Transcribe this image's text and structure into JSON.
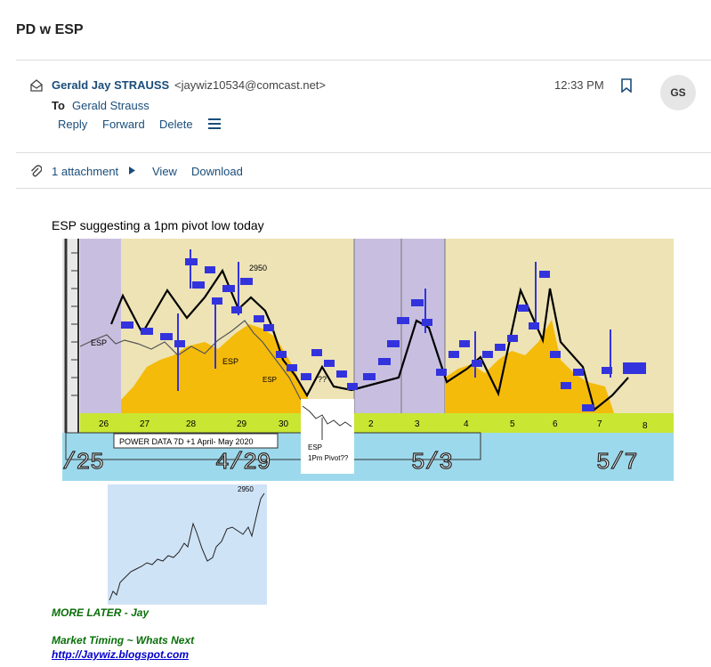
{
  "subject": "PD w ESP",
  "sender": {
    "name": "Gerald Jay STRAUSS",
    "email": "<jaywiz10534@comcast.net>",
    "time": "12:33 PM",
    "avatar_initials": "GS"
  },
  "recipient": {
    "to_label": "To",
    "name": "Gerald Strauss"
  },
  "actions": {
    "reply": "Reply",
    "forward": "Forward",
    "delete": "Delete"
  },
  "attachments": {
    "count_label": "1 attachment",
    "view": "View",
    "download": "Download"
  },
  "body": {
    "headline": "ESP suggesting a 1pm pivot low today",
    "signature": {
      "more": "MORE LATER - Jay",
      "blog_title": "Market Timing ~ Whats Next",
      "blog_link": "http://Jaywiz.blogspot.com"
    }
  },
  "chart_image": {
    "date_numbers": [
      "26",
      "27",
      "28",
      "29",
      "30",
      "",
      "2",
      "3",
      "4",
      "5",
      "6",
      "7",
      "8"
    ],
    "box_label": "POWER DATA 7D +1 April- May 2020",
    "big_dates": [
      "/25",
      "4/29",
      "5/3",
      "5/7"
    ],
    "esp_labels": [
      "ESP",
      "ESP",
      "ESP"
    ],
    "level_label": "2950",
    "pivot_label_line1": "ESP",
    "pivot_label_line2": "1Pm Pivot??",
    "pivot_marker": "??",
    "inset_label": "2950"
  },
  "colors": {
    "link": "#1a4d7a",
    "signature_green": "#0a6e0a",
    "lavender": "#c8bfe0",
    "beige": "#ede3b5",
    "orange": "#f5bb0a",
    "blue_marker": "#3333dd",
    "lime": "#c8e632",
    "cyan": "#9dd9ec"
  }
}
